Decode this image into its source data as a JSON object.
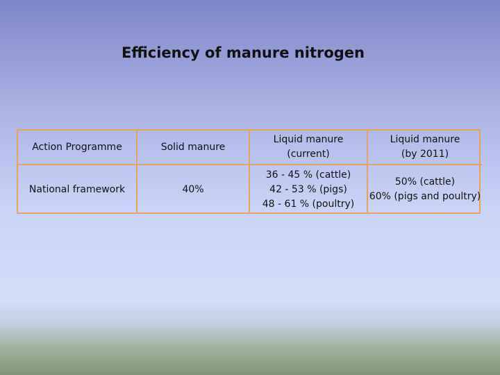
{
  "slide": {
    "title": "Efficiency of manure nitrogen"
  },
  "table": {
    "headers": [
      [
        "Action Programme"
      ],
      [
        "Solid manure"
      ],
      [
        "Liquid manure",
        "(current)"
      ],
      [
        "Liquid manure",
        "(by 2011)"
      ]
    ],
    "rows": [
      {
        "programme": "National framework",
        "solid": "40%",
        "liquid_current": [
          "36 - 45 %  (cattle)",
          "42 - 53 % (pigs)",
          "48 - 61 % (poultry)"
        ],
        "liquid_2011": [
          "50% (cattle)",
          "60% (pigs and poultry)"
        ]
      }
    ]
  },
  "colors": {
    "table_border": "#e8a15f",
    "background_top": "#7d86c6",
    "background_mid": "#d3ddfb",
    "ground": "#7f9676"
  }
}
